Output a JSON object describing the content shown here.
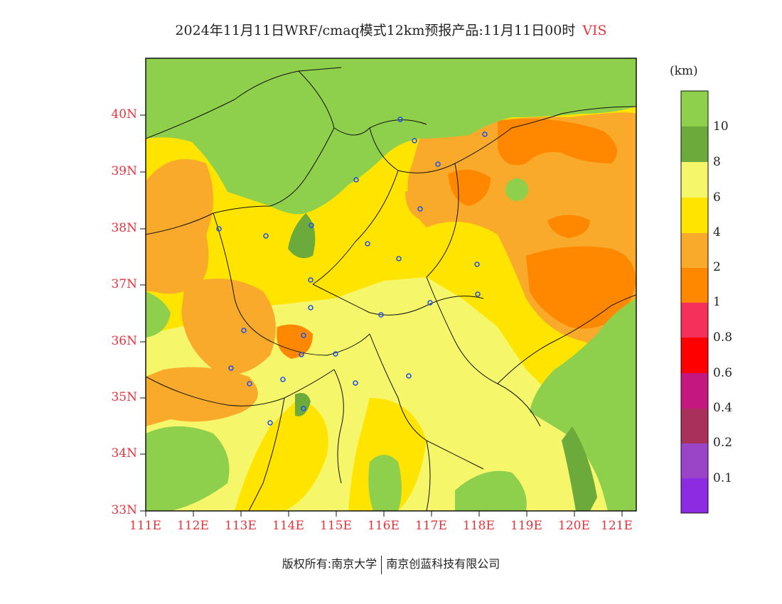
{
  "title": {
    "main": "2024年11月11日WRF/cmaq模式12km预报产品:11月11日00时",
    "variable": "VIS"
  },
  "colors": {
    "label_red": "#e8323c",
    "bins": [
      "#8c2be2",
      "#9a44c8",
      "#a8305a",
      "#c4177f",
      "#ff0000",
      "#f5305a",
      "#ff8800",
      "#f9aa2a",
      "#ffe400",
      "#f6f66a",
      "#6cab3b",
      "#8ecf4c"
    ]
  },
  "legend": {
    "unit": "(km)",
    "labels": [
      "10",
      "8",
      "6",
      "4",
      "2",
      "1",
      "0.8",
      "0.6",
      "0.4",
      "0.2",
      "0.1"
    ]
  },
  "axes": {
    "lat_labels": [
      "40N",
      "39N",
      "38N",
      "37N",
      "36N",
      "35N",
      "34N",
      "33N"
    ],
    "lon_labels": [
      "111E",
      "112E",
      "113E",
      "114E",
      "115E",
      "116E",
      "117E",
      "118E",
      "119E",
      "120E",
      "121E"
    ]
  },
  "footer": {
    "copyright": "版权所有:南京大学",
    "company": "南京创蓝科技有限公司"
  }
}
